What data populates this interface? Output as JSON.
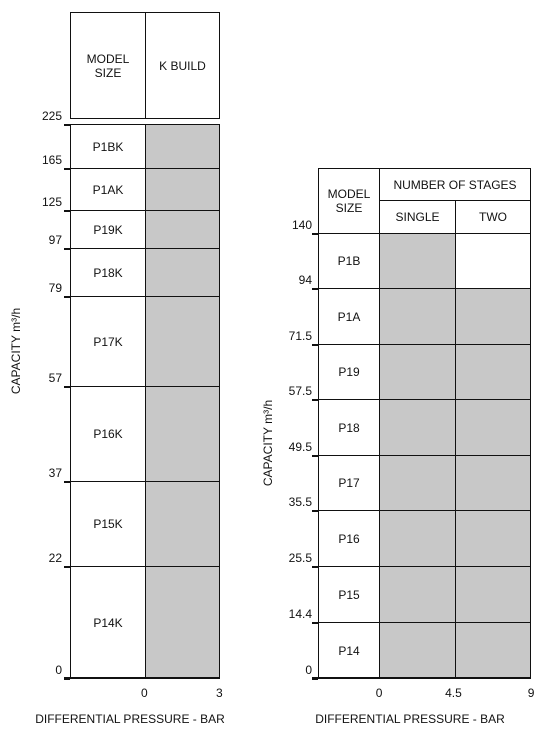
{
  "left": {
    "header": {
      "model_size": "MODEL\nSIZE",
      "build": "K BUILD"
    },
    "y_axis_label": "CAPACITY m³/h",
    "y_ticks": [
      "225",
      "165",
      "125",
      "97",
      "79",
      "57",
      "37",
      "22",
      "0"
    ],
    "rows": [
      "P1BK",
      "P1AK",
      "P19K",
      "P18K",
      "P17K",
      "P16K",
      "P15K",
      "P14K"
    ],
    "x_ticks": [
      "0",
      "3"
    ],
    "x_axis_label": "DIFFERENTIAL PRESSURE - BAR",
    "shaded_color": "#c8c8c8"
  },
  "right": {
    "header": {
      "model_size": "MODEL\nSIZE",
      "stages": "NUMBER OF STAGES",
      "single": "SINGLE",
      "two": "TWO"
    },
    "y_axis_label": "CAPACITY m³/h",
    "y_ticks": [
      "140",
      "94",
      "71.5",
      "57.5",
      "49.5",
      "35.5",
      "25.5",
      "14.4",
      "0"
    ],
    "rows": [
      "P1B",
      "P1A",
      "P19",
      "P18",
      "P17",
      "P16",
      "P15",
      "P14"
    ],
    "two_stage_available": [
      false,
      true,
      true,
      true,
      true,
      true,
      true,
      true
    ],
    "x_ticks": [
      "0",
      "4.5",
      "9"
    ],
    "x_axis_label": "DIFFERENTIAL PRESSURE - BAR",
    "shaded_color": "#c8c8c8"
  }
}
